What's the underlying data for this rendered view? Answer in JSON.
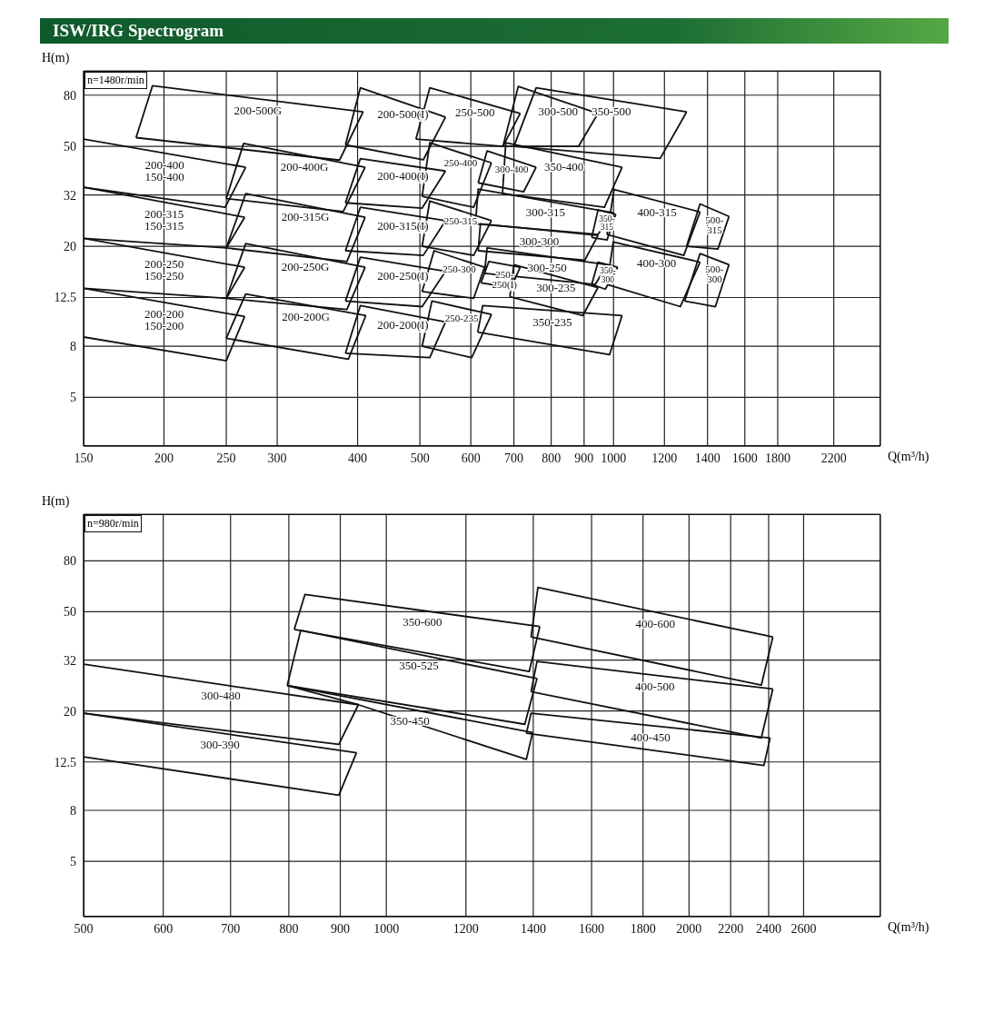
{
  "chart_data": [
    {
      "type": "line",
      "title": "ISW/IRG Spectrogram",
      "xlabel": "Q(m³/h)",
      "ylabel": "H(m)",
      "annotations": [
        "n=1480r/min"
      ],
      "xlim": [
        150,
        2600
      ],
      "ylim": [
        3.2,
        100
      ],
      "xticks": [
        150,
        200,
        250,
        300,
        400,
        500,
        600,
        700,
        800,
        900,
        1000,
        1200,
        1400,
        1600,
        1800,
        2200
      ],
      "yticks": [
        5,
        8,
        12.5,
        20,
        32,
        50,
        80
      ],
      "log": "xy",
      "grid": true,
      "marker": "none",
      "line_style": "solid",
      "color": "#111111",
      "series": [
        {
          "name": "200-400\n150-400",
          "x": [
            150,
            268
          ],
          "values": [
            53.5,
            41.3
          ]
        },
        {
          "x": [
            150,
            249,
            268
          ],
          "values": [
            34.4,
            28.6,
            41.3
          ]
        },
        {
          "name": "200-315\n150-315",
          "x": [
            150,
            267
          ],
          "values": [
            34.4,
            26.1
          ]
        },
        {
          "x": [
            150,
            250,
            267
          ],
          "values": [
            21.5,
            19.7,
            26.1
          ]
        },
        {
          "name": "200-250\n150-250",
          "x": [
            150,
            267
          ],
          "values": [
            21.5,
            16.5
          ]
        },
        {
          "x": [
            150,
            250,
            267
          ],
          "values": [
            13.6,
            12.4,
            16.5
          ]
        },
        {
          "name": "200-200\n150-200",
          "x": [
            150,
            267
          ],
          "values": [
            13.6,
            10.5
          ]
        },
        {
          "x": [
            150,
            250,
            267
          ],
          "values": [
            8.7,
            7.0,
            10.5
          ]
        },
        {
          "name": "200-500G",
          "x": [
            181,
            192,
            408
          ],
          "values": [
            54.2,
            87.3,
            68.6
          ]
        },
        {
          "x": [
            181,
            375,
            408
          ],
          "values": [
            54.2,
            44.1,
            68.6
          ]
        },
        {
          "name": "200-400G",
          "x": [
            250,
            266,
            411
          ],
          "values": [
            31,
            51.4,
            41.3
          ]
        },
        {
          "x": [
            250,
            380,
            411
          ],
          "values": [
            31,
            27.5,
            41.3
          ]
        },
        {
          "name": "200-315G",
          "x": [
            250,
            268,
            411
          ],
          "values": [
            19.7,
            32.4,
            26.1
          ]
        },
        {
          "x": [
            250,
            385,
            411
          ],
          "values": [
            19.7,
            17.4,
            26.1
          ]
        },
        {
          "name": "200-250G",
          "x": [
            250,
            268,
            411
          ],
          "values": [
            12.4,
            20.5,
            16.5
          ]
        },
        {
          "x": [
            250,
            385,
            411
          ],
          "values": [
            12.4,
            11.2,
            16.5
          ]
        },
        {
          "name": "200-200G",
          "x": [
            250,
            268,
            412
          ],
          "values": [
            8.6,
            12.9,
            10.6
          ]
        },
        {
          "x": [
            250,
            387,
            412
          ],
          "values": [
            8.6,
            7.1,
            10.6
          ]
        },
        {
          "name": "200-500(I)",
          "x": [
            383,
            404,
            548
          ],
          "values": [
            50.7,
            85.6,
            65.4
          ]
        },
        {
          "x": [
            383,
            506,
            548
          ],
          "values": [
            50.7,
            44.2,
            65.4
          ]
        },
        {
          "name": "200-400(I)",
          "x": [
            383,
            404,
            548
          ],
          "values": [
            29.8,
            44.7,
            39.9
          ]
        },
        {
          "x": [
            383,
            504,
            548
          ],
          "values": [
            29.8,
            28.4,
            39.9
          ]
        },
        {
          "name": "200-315(I)",
          "x": [
            383,
            404,
            548
          ],
          "values": [
            19.2,
            28.6,
            25.3
          ]
        },
        {
          "x": [
            383,
            506,
            548
          ],
          "values": [
            19.2,
            18.4,
            25.3
          ]
        },
        {
          "name": "200-250(I)",
          "x": [
            383,
            404,
            548
          ],
          "values": [
            12.1,
            18.1,
            15.9
          ]
        },
        {
          "x": [
            383,
            504,
            548
          ],
          "values": [
            12.1,
            11.5,
            15.9
          ]
        },
        {
          "name": "200-200(I)",
          "x": [
            383,
            404,
            548
          ],
          "values": [
            7.5,
            11.6,
            10
          ]
        },
        {
          "x": [
            383,
            518,
            548
          ],
          "values": [
            7.5,
            7.2,
            10
          ]
        },
        {
          "name": "250-500",
          "x": [
            493,
            518,
            716
          ],
          "values": [
            53.5,
            85.6,
            67.7
          ]
        },
        {
          "x": [
            493,
            673,
            716
          ],
          "values": [
            53.5,
            50,
            67.7
          ]
        },
        {
          "name": "250-400",
          "x": [
            504,
            518,
            646
          ],
          "values": [
            31.6,
            51.7,
            43
          ]
        },
        {
          "x": [
            504,
            606,
            646
          ],
          "values": [
            31.6,
            28.6,
            43
          ]
        },
        {
          "name": "250-315",
          "x": [
            504,
            518,
            646
          ],
          "values": [
            20,
            30.3,
            25.3
          ]
        },
        {
          "x": [
            504,
            606,
            646
          ],
          "values": [
            20,
            18.4,
            25.3
          ]
        },
        {
          "name": "250-300",
          "x": [
            504,
            526,
            630
          ],
          "values": [
            13.2,
            19.2,
            16.5
          ]
        },
        {
          "x": [
            504,
            606,
            630
          ],
          "values": [
            13.2,
            12.4,
            16.5
          ]
        },
        {
          "name": "250-235",
          "x": [
            504,
            522,
            646
          ],
          "values": [
            8,
            12.1,
            10.7
          ]
        },
        {
          "x": [
            504,
            602,
            646
          ],
          "values": [
            8,
            7.2,
            10.7
          ]
        },
        {
          "name": "250-\n250(I)",
          "x": [
            622,
            640,
            716
          ],
          "values": [
            14.3,
            17.4,
            16.5
          ]
        },
        {
          "x": [
            622,
            693,
            716
          ],
          "values": [
            14.3,
            13.7,
            16.5
          ]
        },
        {
          "name": "300-500",
          "x": [
            673,
            711,
            946
          ],
          "values": [
            50,
            86.7,
            67.7
          ]
        },
        {
          "x": [
            673,
            882,
            946
          ],
          "values": [
            50,
            50,
            67.7
          ]
        },
        {
          "name": "300-400",
          "x": [
            616,
            636,
            758
          ],
          "values": [
            35.8,
            48,
            41.3
          ]
        },
        {
          "x": [
            616,
            725,
            758
          ],
          "values": [
            35.8,
            33,
            41.3
          ]
        },
        {
          "name": "300-315",
          "x": [
            610,
            616,
            998
          ],
          "values": [
            24.6,
            33.8,
            27.2
          ]
        },
        {
          "x": [
            610,
            946,
            998
          ],
          "values": [
            24.6,
            22.3,
            27.2
          ]
        },
        {
          "name": "300-300",
          "x": [
            616,
            621,
            946
          ],
          "values": [
            19.2,
            24.6,
            22.1
          ]
        },
        {
          "x": [
            616,
            902,
            946
          ],
          "values": [
            19.2,
            17.6,
            22.1
          ]
        },
        {
          "name": "300-250",
          "x": [
            630,
            636,
            977
          ],
          "values": [
            15.6,
            19.7,
            16.9
          ]
        },
        {
          "x": [
            630,
            937,
            977
          ],
          "values": [
            15.6,
            14.1,
            16.9
          ]
        },
        {
          "name": "300-235",
          "x": [
            690,
            700,
            946
          ],
          "values": [
            12.6,
            16.9,
            13.7
          ]
        },
        {
          "x": [
            690,
            896,
            946
          ],
          "values": [
            12.6,
            10.6,
            13.7
          ]
        },
        {
          "name": "350-235",
          "x": [
            615,
            626,
            1031
          ],
          "values": [
            9.1,
            11.6,
            10.6
          ]
        },
        {
          "x": [
            615,
            986,
            1031
          ],
          "values": [
            9.1,
            7.4,
            10.6
          ]
        },
        {
          "name": "350-500",
          "x": [
            700,
            758,
            1299
          ],
          "values": [
            50,
            85.6,
            68.6
          ]
        },
        {
          "x": [
            700,
            1182,
            1299
          ],
          "values": [
            50,
            44.8,
            68.6
          ]
        },
        {
          "name": "350-400",
          "x": [
            672,
            680,
            1031
          ],
          "values": [
            32.4,
            51.7,
            41.3
          ]
        },
        {
          "x": [
            672,
            968,
            1031
          ],
          "values": [
            32.4,
            28.6,
            41.3
          ]
        },
        {
          "name": "350-\n315",
          "x": [
            925,
            946,
            1008
          ],
          "values": [
            21.7,
            27.9,
            26.8
          ]
        },
        {
          "x": [
            925,
            977,
            1008
          ],
          "values": [
            21.7,
            21.2,
            26.8
          ]
        },
        {
          "name": "350-\n300",
          "x": [
            925,
            946,
            1015
          ],
          "values": [
            14.1,
            17.3,
            16.5
          ]
        },
        {
          "x": [
            925,
            971,
            1015
          ],
          "values": [
            14.1,
            13.5,
            16.5
          ]
        },
        {
          "name": "400-315",
          "x": [
            977,
            1002,
            1363
          ],
          "values": [
            22.3,
            33.7,
            27.4
          ]
        },
        {
          "x": [
            977,
            1286,
            1363
          ],
          "values": [
            22.3,
            18.4,
            27.4
          ]
        },
        {
          "name": "400-300",
          "x": [
            977,
            999,
            1363
          ],
          "values": [
            14.1,
            20.8,
            17.3
          ]
        },
        {
          "x": [
            977,
            1270,
            1363
          ],
          "values": [
            14.1,
            11.5,
            17.3
          ]
        },
        {
          "name": "500-\n315",
          "x": [
            1299,
            1363,
            1512
          ],
          "values": [
            20,
            29.5,
            26.3
          ]
        },
        {
          "x": [
            1299,
            1453,
            1512
          ],
          "values": [
            20,
            19.5,
            26.3
          ]
        },
        {
          "name": "500-\n300",
          "x": [
            1290,
            1363,
            1512
          ],
          "values": [
            12.1,
            18.7,
            16.9
          ]
        },
        {
          "x": [
            1290,
            1440,
            1512
          ],
          "values": [
            12.1,
            11.5,
            16.9
          ]
        }
      ]
    },
    {
      "type": "line",
      "xlabel": "Q(m³/h)",
      "ylabel": "H(m)",
      "annotations": [
        "n=980r/min"
      ],
      "xlim": [
        500,
        3100
      ],
      "ylim": [
        3,
        123
      ],
      "xticks": [
        500,
        600,
        700,
        800,
        900,
        1000,
        1200,
        1400,
        1600,
        1800,
        2000,
        2200,
        2400,
        2600
      ],
      "yticks": [
        5,
        8,
        12.5,
        20,
        32,
        50,
        80
      ],
      "log": "xy",
      "grid": true,
      "marker": "none",
      "line_style": "solid",
      "color": "#111111",
      "series": [
        {
          "name": "350-600",
          "x": [
            810,
            830,
            1421
          ],
          "values": [
            42.5,
            58.6,
            43.6
          ]
        },
        {
          "x": [
            810,
            1387,
            1421
          ],
          "values": [
            42.5,
            28.8,
            43.6
          ]
        },
        {
          "name": "350-525",
          "x": [
            797,
            822,
            1412
          ],
          "values": [
            25.3,
            42.1,
            27
          ]
        },
        {
          "x": [
            797,
            1373,
            1412
          ],
          "values": [
            25.3,
            17.7,
            27
          ]
        },
        {
          "name": "350-450",
          "x": [
            797,
            1398
          ],
          "values": [
            25.3,
            16.4
          ]
        },
        {
          "x": [
            797,
            938,
            1378,
            1398
          ],
          "values": [
            25.3,
            21.2,
            12.8,
            16.4
          ]
        },
        {
          "name": "300-480",
          "x": [
            500,
            938
          ],
          "values": [
            30.8,
            21.2
          ]
        },
        {
          "x": [
            500,
            897,
            938
          ],
          "values": [
            19.6,
            14.7,
            21.2
          ]
        },
        {
          "name": "300-390",
          "x": [
            500,
            934
          ],
          "values": [
            19.6,
            13.6
          ]
        },
        {
          "x": [
            500,
            897,
            934
          ],
          "values": [
            13.1,
            9.2,
            13.6
          ]
        },
        {
          "name": "400-600",
          "x": [
            1393,
            1415,
            2423
          ],
          "values": [
            39.6,
            62.6,
            39.6
          ]
        },
        {
          "x": [
            1393,
            2360,
            2423
          ],
          "values": [
            39.6,
            25.4,
            39.6
          ]
        },
        {
          "name": "400-500",
          "x": [
            1393,
            1412,
            2423
          ],
          "values": [
            23.9,
            31.6,
            24.5
          ]
        },
        {
          "x": [
            1393,
            2360,
            2423
          ],
          "values": [
            23.9,
            15.6,
            24.5
          ]
        },
        {
          "name": "400-450",
          "x": [
            1378,
            1393,
            2408
          ],
          "values": [
            16.3,
            19.6,
            15.6
          ]
        },
        {
          "x": [
            1378,
            2374,
            2408
          ],
          "values": [
            16.3,
            12.1,
            15.6
          ]
        }
      ]
    }
  ]
}
